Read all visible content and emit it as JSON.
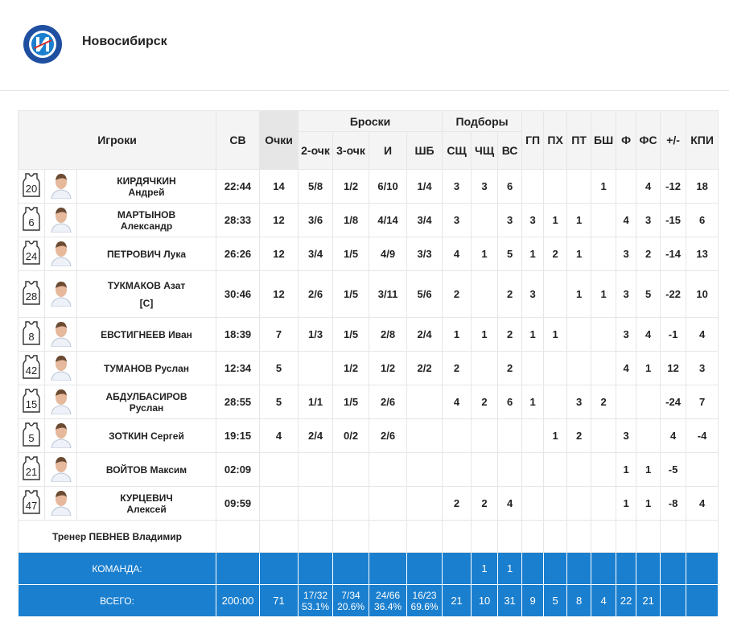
{
  "header": {
    "title": "Новосибирск"
  },
  "table": {
    "columns": {
      "players": "Игроки",
      "minutes": "СВ",
      "points": "Очки",
      "shots": {
        "label": "Броски",
        "sub": [
          "2-очк",
          "3-очк",
          "И",
          "ШБ"
        ]
      },
      "rebounds": {
        "label": "Подборы",
        "sub": [
          "СЩ",
          "ЧЩ",
          "ВС"
        ]
      },
      "rest": [
        "ГП",
        "ПХ",
        "ПТ",
        "БШ",
        "Ф",
        "ФС",
        "+/-",
        "КПИ"
      ]
    },
    "rows": [
      {
        "number": 20,
        "name": [
          "КИРДЯЧКИН",
          "Андрей"
        ],
        "stats": [
          "22:44",
          14,
          "5/8",
          "1/2",
          "6/10",
          "1/4",
          3,
          3,
          6,
          null,
          null,
          null,
          1,
          null,
          4,
          -12,
          18
        ]
      },
      {
        "number": 6,
        "name": [
          "МАРТЫНОВ",
          "Александр"
        ],
        "stats": [
          "28:33",
          12,
          "3/6",
          "1/8",
          "4/14",
          "3/4",
          3,
          null,
          3,
          3,
          1,
          1,
          null,
          4,
          3,
          -15,
          6
        ]
      },
      {
        "number": 24,
        "name": [
          "ПЕТРОВИЧ Лука"
        ],
        "stats": [
          "26:26",
          12,
          "3/4",
          "1/5",
          "4/9",
          "3/3",
          4,
          1,
          5,
          1,
          2,
          1,
          null,
          3,
          2,
          -14,
          13
        ]
      },
      {
        "number": 28,
        "name": [
          "ТУКМАКОВ Азат",
          "[C]"
        ],
        "stats": [
          "30:46",
          12,
          "2/6",
          "1/5",
          "3/11",
          "5/6",
          2,
          null,
          2,
          3,
          null,
          1,
          1,
          3,
          5,
          -22,
          10
        ]
      },
      {
        "number": 8,
        "name": [
          "ЕВСТИГНЕЕВ Иван"
        ],
        "stats": [
          "18:39",
          7,
          "1/3",
          "1/5",
          "2/8",
          "2/4",
          1,
          1,
          2,
          1,
          1,
          null,
          null,
          3,
          4,
          -1,
          4
        ]
      },
      {
        "number": 42,
        "name": [
          "ТУМАНОВ Руслан"
        ],
        "stats": [
          "12:34",
          5,
          null,
          "1/2",
          "1/2",
          "2/2",
          2,
          null,
          2,
          null,
          null,
          null,
          null,
          4,
          1,
          12,
          3
        ]
      },
      {
        "number": 15,
        "name": [
          "АБДУЛБАСИРОВ",
          "Руслан"
        ],
        "stats": [
          "28:55",
          5,
          "1/1",
          "1/5",
          "2/6",
          null,
          4,
          2,
          6,
          1,
          null,
          3,
          2,
          null,
          null,
          -24,
          7
        ]
      },
      {
        "number": 5,
        "name": [
          "ЗОТКИН Сергей"
        ],
        "stats": [
          "19:15",
          4,
          "2/4",
          "0/2",
          "2/6",
          null,
          null,
          null,
          null,
          null,
          1,
          2,
          null,
          3,
          null,
          4,
          -4
        ]
      },
      {
        "number": 21,
        "name": [
          "ВОЙТОВ Максим"
        ],
        "stats": [
          "02:09",
          null,
          null,
          null,
          null,
          null,
          null,
          null,
          null,
          null,
          null,
          null,
          null,
          1,
          1,
          -5,
          null
        ]
      },
      {
        "number": 47,
        "name": [
          "КУРЦЕВИЧ",
          "Алексей"
        ],
        "stats": [
          "09:59",
          null,
          null,
          null,
          null,
          null,
          2,
          2,
          4,
          null,
          null,
          null,
          null,
          1,
          1,
          -8,
          4
        ]
      }
    ],
    "coach": "Тренер ПЕВНЕВ Владимир",
    "team": {
      "label": "КОМАНДА:",
      "stats": [
        null,
        null,
        null,
        null,
        null,
        null,
        null,
        1,
        1,
        null,
        null,
        null,
        null,
        null,
        null,
        null,
        null
      ]
    },
    "total": {
      "label": "ВСЕГО:",
      "stats": [
        "200:00",
        71,
        [
          "17/32",
          "53.1%"
        ],
        [
          "7/34",
          "20.6%"
        ],
        [
          "24/66",
          "36.4%"
        ],
        [
          "16/23",
          "69.6%"
        ],
        21,
        10,
        31,
        9,
        5,
        8,
        4,
        22,
        21,
        null,
        null
      ]
    }
  }
}
